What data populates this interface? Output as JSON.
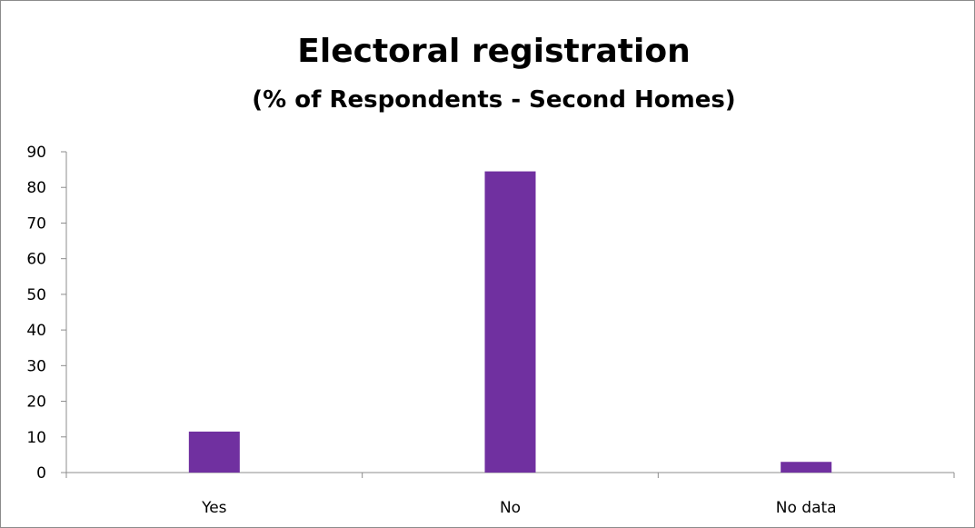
{
  "chart_data": {
    "type": "bar",
    "title": "Electoral registration",
    "subtitle": "(%  of Respondents - Second Homes)",
    "categories": [
      "Yes",
      "No",
      "No data"
    ],
    "values": [
      11.5,
      84.5,
      3
    ],
    "ylim": [
      0,
      90
    ],
    "yticks": [
      0,
      10,
      20,
      30,
      40,
      50,
      60,
      70,
      80,
      90
    ],
    "xlabel": "",
    "ylabel": "",
    "grid": false,
    "legend": "none",
    "bar_color": "#7030a0",
    "axis_color": "#8c8c8c"
  }
}
